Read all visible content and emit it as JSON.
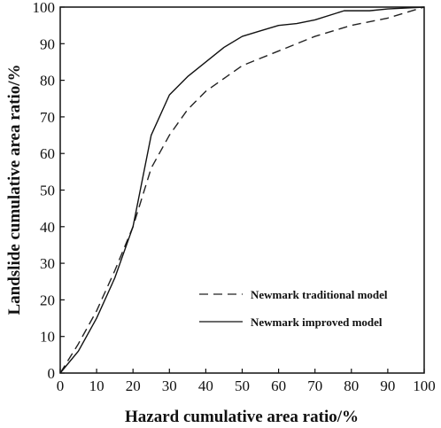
{
  "chart_data": {
    "type": "line",
    "title": "",
    "xlabel": "Hazard cumulative area ratio/%",
    "ylabel": "Landslide cumulative area ratio/%",
    "xlim": [
      0,
      100
    ],
    "ylim": [
      0,
      100
    ],
    "xticks": [
      "0",
      "10",
      "20",
      "30",
      "40",
      "50",
      "60",
      "70",
      "80",
      "90",
      "100"
    ],
    "yticks": [
      "0",
      "10",
      "20",
      "30",
      "40",
      "50",
      "60",
      "70",
      "80",
      "90",
      "100"
    ],
    "grid": false,
    "legend_position": "bottom-right",
    "series": [
      {
        "name": "Newmark traditional model",
        "line_style": "dashed",
        "color": "#222222",
        "x": [
          0,
          5,
          10,
          15,
          20,
          25,
          30,
          35,
          40,
          50,
          60,
          70,
          80,
          90,
          100
        ],
        "y": [
          0,
          8,
          17,
          28,
          40,
          56,
          65,
          72,
          77,
          84,
          88,
          92,
          95,
          97,
          100
        ]
      },
      {
        "name": "Newmark improved model",
        "line_style": "solid",
        "color": "#111111",
        "x": [
          0,
          5,
          10,
          15,
          20,
          25,
          30,
          35,
          40,
          45,
          50,
          55,
          60,
          65,
          70,
          78,
          85,
          90,
          100
        ],
        "y": [
          0,
          6,
          15,
          26,
          40,
          65,
          76,
          81,
          85,
          89,
          92,
          93.5,
          95,
          95.5,
          96.5,
          99,
          99,
          99.5,
          100
        ]
      }
    ]
  }
}
